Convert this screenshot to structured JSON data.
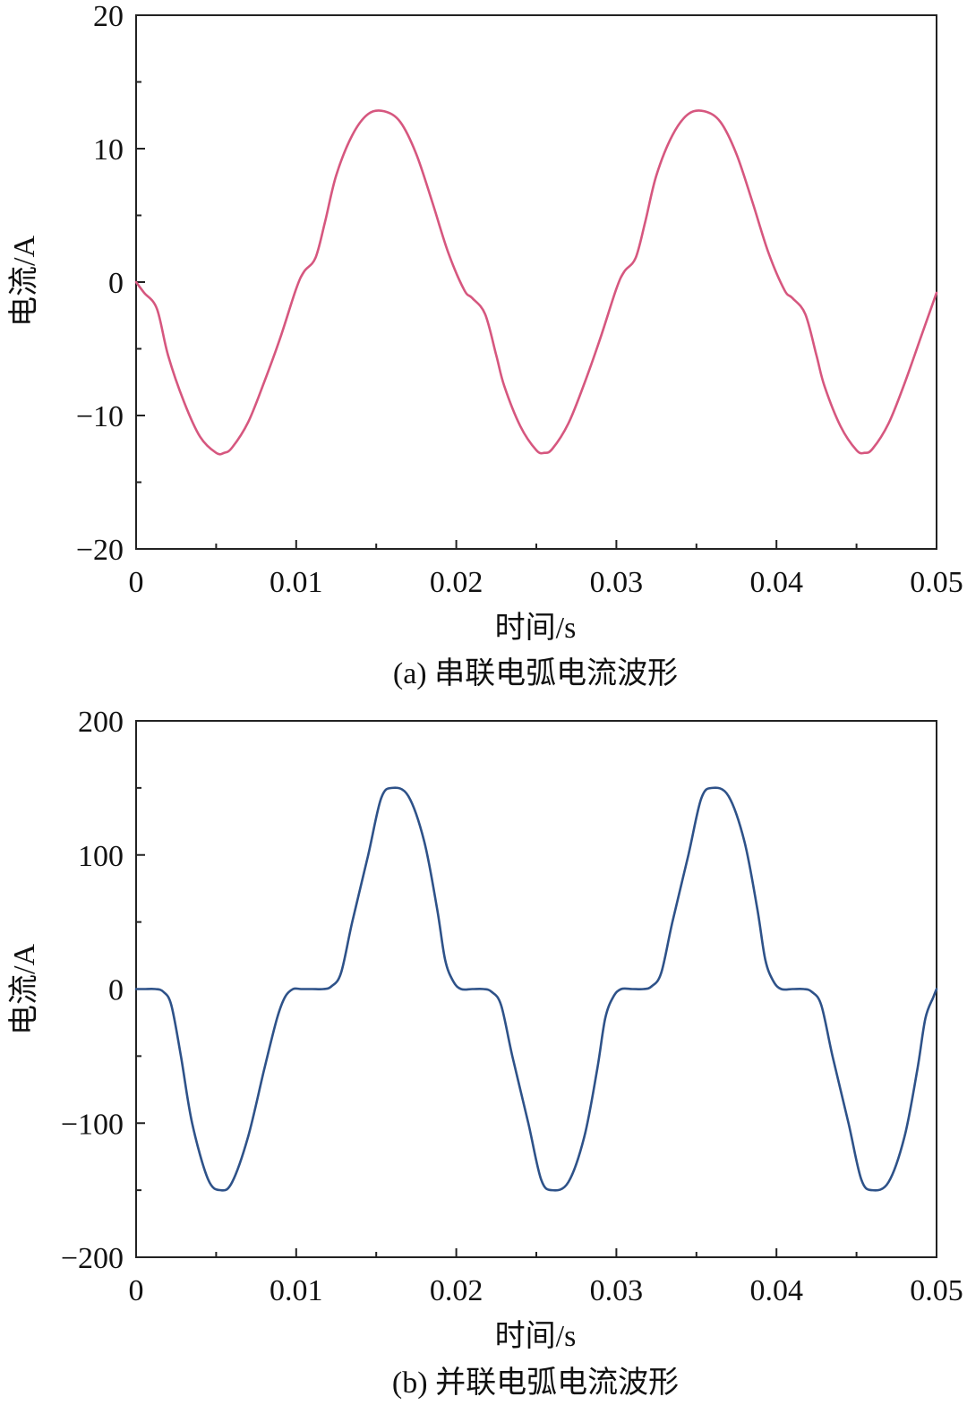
{
  "chart_data": [
    {
      "type": "line",
      "panel": "a",
      "caption": "(a) 串联电弧电流波形",
      "xlabel": "时间/s",
      "ylabel": "电流/A",
      "xlim": [
        0,
        0.05
      ],
      "ylim": [
        -20,
        20
      ],
      "xticks": [
        0,
        0.01,
        0.02,
        0.03,
        0.04,
        0.05
      ],
      "xtick_labels": [
        "0",
        "0.01",
        "0.02",
        "0.03",
        "0.04",
        "0.05"
      ],
      "yticks": [
        -20,
        -10,
        0,
        10,
        20
      ],
      "ytick_labels": [
        "−20",
        "−10",
        "0",
        "10",
        "20"
      ],
      "y_minor_ticks": [
        -15,
        -5,
        5,
        15
      ],
      "x_minor_ticks": [
        0.005,
        0.015,
        0.025,
        0.035,
        0.045
      ],
      "grid": false,
      "color": "#d6577f",
      "series": [
        {
          "x": [
            0,
            0.0005,
            0.0013,
            0.002,
            0.003,
            0.004,
            0.005,
            0.0055,
            0.006,
            0.007,
            0.008,
            0.009,
            0.01,
            0.0105,
            0.0112,
            0.0118,
            0.0125,
            0.0135,
            0.0145,
            0.0155,
            0.0165,
            0.0175,
            0.0185,
            0.0195,
            0.0205,
            0.021,
            0.0218,
            0.0225,
            0.023,
            0.024,
            0.025,
            0.0255,
            0.026,
            0.027,
            0.028,
            0.029,
            0.03,
            0.0305,
            0.0312,
            0.0318,
            0.0325,
            0.0335,
            0.0345,
            0.0355,
            0.0365,
            0.0375,
            0.0385,
            0.0395,
            0.0405,
            0.041,
            0.0418,
            0.0425,
            0.043,
            0.044,
            0.045,
            0.0455,
            0.046,
            0.047,
            0.048,
            0.049,
            0.05
          ],
          "y": [
            0,
            -0.8,
            -2.0,
            -5.5,
            -9.0,
            -11.6,
            -12.8,
            -12.8,
            -12.4,
            -10.5,
            -7.5,
            -4.2,
            -0.5,
            0.8,
            1.8,
            4.5,
            8.0,
            11.0,
            12.6,
            12.8,
            12.0,
            9.6,
            6.0,
            2.2,
            -0.6,
            -1.2,
            -2.4,
            -5.5,
            -7.8,
            -10.8,
            -12.6,
            -12.8,
            -12.5,
            -10.6,
            -7.6,
            -4.2,
            -0.5,
            0.8,
            1.8,
            4.5,
            8.0,
            11.0,
            12.6,
            12.8,
            12.0,
            9.6,
            6.0,
            2.2,
            -0.6,
            -1.2,
            -2.4,
            -5.5,
            -7.8,
            -10.8,
            -12.6,
            -12.8,
            -12.5,
            -10.6,
            -7.6,
            -4.2,
            -0.8
          ]
        }
      ]
    },
    {
      "type": "line",
      "panel": "b",
      "caption": "(b) 并联电弧电流波形",
      "xlabel": "时间/s",
      "ylabel": "电流/A",
      "xlim": [
        0,
        0.05
      ],
      "ylim": [
        -200,
        200
      ],
      "xticks": [
        0,
        0.01,
        0.02,
        0.03,
        0.04,
        0.05
      ],
      "xtick_labels": [
        "0",
        "0.01",
        "0.02",
        "0.03",
        "0.04",
        "0.05"
      ],
      "yticks": [
        -200,
        -100,
        0,
        100,
        200
      ],
      "ytick_labels": [
        "−200",
        "−100",
        "0",
        "100",
        "200"
      ],
      "y_minor_ticks": [
        -150,
        -50,
        50,
        150
      ],
      "x_minor_ticks": [
        0.005,
        0.015,
        0.025,
        0.035,
        0.045
      ],
      "grid": false,
      "color": "#2e5289",
      "series": [
        {
          "x": [
            0,
            0.0005,
            0.0012,
            0.0017,
            0.0022,
            0.0028,
            0.0035,
            0.0045,
            0.0053,
            0.006,
            0.007,
            0.008,
            0.0088,
            0.0093,
            0.0098,
            0.0103,
            0.011,
            0.0117,
            0.0122,
            0.0128,
            0.0135,
            0.0145,
            0.0153,
            0.016,
            0.017,
            0.018,
            0.0188,
            0.0193,
            0.0198,
            0.0203,
            0.021,
            0.0217,
            0.0222,
            0.0228,
            0.0235,
            0.0245,
            0.0253,
            0.026,
            0.027,
            0.028,
            0.0288,
            0.0293,
            0.0298,
            0.0303,
            0.031,
            0.0317,
            0.0322,
            0.0328,
            0.0335,
            0.0345,
            0.0353,
            0.036,
            0.037,
            0.038,
            0.0388,
            0.0393,
            0.0398,
            0.0403,
            0.041,
            0.0417,
            0.0422,
            0.0428,
            0.0435,
            0.0445,
            0.0453,
            0.046,
            0.047,
            0.048,
            0.0488,
            0.0493,
            0.0498,
            0.05
          ],
          "y": [
            0,
            0,
            0,
            -2,
            -12,
            -50,
            -100,
            -142,
            -150,
            -144,
            -110,
            -60,
            -22,
            -6,
            0,
            0,
            0,
            0,
            2,
            12,
            50,
            100,
            142,
            150,
            144,
            110,
            60,
            22,
            6,
            0,
            0,
            0,
            -2,
            -12,
            -50,
            -100,
            -142,
            -150,
            -144,
            -110,
            -60,
            -22,
            -6,
            0,
            0,
            0,
            2,
            12,
            50,
            100,
            142,
            150,
            144,
            110,
            60,
            22,
            6,
            0,
            0,
            0,
            -2,
            -12,
            -50,
            -100,
            -142,
            -150,
            -144,
            -110,
            -60,
            -22,
            -6,
            0
          ]
        }
      ]
    }
  ]
}
